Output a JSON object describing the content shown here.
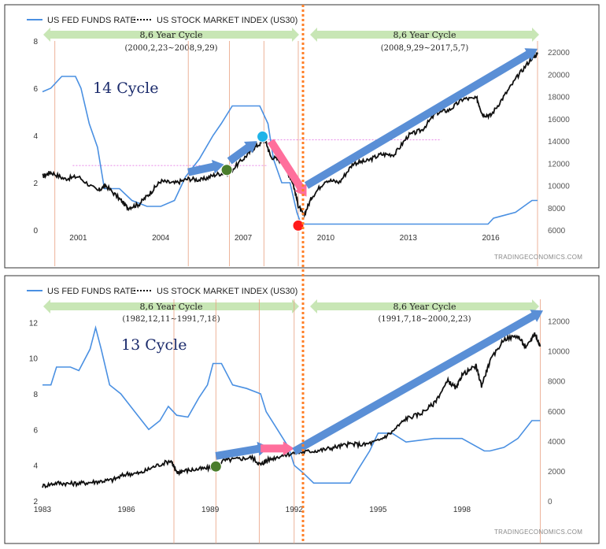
{
  "legend": {
    "fed": "US FED FUNDS RATE",
    "stock": "US STOCK MARKET INDEX (US30)"
  },
  "watermark": "TRADINGECONOMICS.COM",
  "colors": {
    "fed": "#4a90e2",
    "stock": "#111111",
    "arrow_blue": "#5a8fd6",
    "arrow_pink": "#ff6f9c",
    "green_band": "#c8e6b5",
    "cycle_line": "#ff7f27",
    "guide_line": "#e8a080",
    "green_dot": "#4a7d2b",
    "blue_dot": "#1fb3e8",
    "red_dot": "#ff1a1a"
  },
  "chart_data": [
    {
      "type": "line",
      "cycle_label": "14 Cycle",
      "x_ticks": [
        "2001",
        "2004",
        "2007",
        "2010",
        "2013",
        "2016"
      ],
      "y_left_ticks": [
        "0",
        "2",
        "4",
        "6",
        "8"
      ],
      "y_right_ticks": [
        "6000",
        "8000",
        "10000",
        "12000",
        "14000",
        "16000",
        "18000",
        "20000",
        "22000"
      ],
      "ylim_left": [
        0,
        8
      ],
      "ylim_right": [
        6000,
        23000
      ],
      "xlim": [
        1999.7,
        2017.9
      ],
      "cycles": [
        {
          "title": "8,6 Year Cycle",
          "range": "(2000,2,23~2008,9,29)"
        },
        {
          "title": "8,6 Year Cycle",
          "range": "(2008,9,29~2017,5,7)"
        }
      ],
      "series": [
        {
          "name": "US FED FUNDS RATE",
          "axis": "left",
          "x": [
            1999.7,
            2000.0,
            2000.4,
            2000.9,
            2001.1,
            2001.4,
            2001.7,
            2001.95,
            2002.5,
            2002.95,
            2003.5,
            2004.0,
            2004.5,
            2004.9,
            2005.4,
            2005.9,
            2006.2,
            2006.6,
            2007.0,
            2007.6,
            2007.9,
            2008.1,
            2008.4,
            2008.7,
            2008.95,
            2009.1,
            2010.0,
            2012.0,
            2014.0,
            2015.9,
            2016.1,
            2016.9,
            2017.2,
            2017.5,
            2017.7
          ],
          "y": [
            5.85,
            6.0,
            6.5,
            6.5,
            6.0,
            4.5,
            3.5,
            1.75,
            1.75,
            1.25,
            1.0,
            1.0,
            1.25,
            2.25,
            3.0,
            4.0,
            4.5,
            5.25,
            5.25,
            5.25,
            4.5,
            3.0,
            2.0,
            2.0,
            0.75,
            0.25,
            0.25,
            0.25,
            0.25,
            0.25,
            0.5,
            0.75,
            1.0,
            1.25,
            1.25
          ]
        },
        {
          "name": "US STOCK MARKET INDEX (US30)",
          "axis": "right",
          "x": [
            1999.7,
            2000.0,
            2000.5,
            2001.0,
            2001.7,
            2002.0,
            2002.5,
            2002.8,
            2003.2,
            2003.6,
            2004.0,
            2004.5,
            2005.0,
            2005.5,
            2006.0,
            2006.5,
            2007.0,
            2007.4,
            2007.8,
            2008.0,
            2008.4,
            2008.8,
            2009.0,
            2009.2,
            2009.5,
            2010.0,
            2010.5,
            2011.0,
            2011.5,
            2012.0,
            2012.5,
            2013.0,
            2013.5,
            2014.0,
            2014.5,
            2015.0,
            2015.5,
            2015.7,
            2016.0,
            2016.5,
            2017.0,
            2017.5,
            2017.7
          ],
          "y": [
            10800,
            11200,
            10600,
            10800,
            9500,
            10000,
            8800,
            8000,
            8300,
            9300,
            10400,
            10200,
            10600,
            10500,
            11000,
            11200,
            12400,
            13400,
            14100,
            12600,
            12200,
            10300,
            8200,
            7300,
            9000,
            10500,
            10300,
            12000,
            12200,
            12800,
            12800,
            14500,
            15000,
            16500,
            16800,
            17800,
            17800,
            16400,
            16300,
            18100,
            19900,
            21500,
            21800
          ]
        }
      ],
      "annotations": [
        {
          "kind": "arrow",
          "color": "blue",
          "x": [
            2005.0,
            2006.3
          ],
          "y": [
            11200,
            11900
          ]
        },
        {
          "kind": "arrow",
          "color": "blue",
          "x": [
            2006.5,
            2007.5
          ],
          "y": [
            12200,
            14000
          ]
        },
        {
          "kind": "arrow",
          "color": "pink",
          "x": [
            2008.0,
            2009.3
          ],
          "y": [
            14000,
            9000
          ]
        },
        {
          "kind": "arrow",
          "color": "blue",
          "x": [
            2009.3,
            2017.7
          ],
          "y": [
            10000,
            22300
          ]
        },
        {
          "kind": "dot",
          "color": "green",
          "x": 2006.4,
          "y": 11400
        },
        {
          "kind": "dot",
          "color": "blue",
          "x": 2007.7,
          "y": 14400
        },
        {
          "kind": "dot",
          "color": "red",
          "x": 2009.0,
          "y": 6400
        }
      ]
    },
    {
      "type": "line",
      "cycle_label": "13 Cycle",
      "x_ticks": [
        "1983",
        "1986",
        "1989",
        "1992",
        "1995",
        "1998"
      ],
      "y_left_ticks": [
        "2",
        "4",
        "6",
        "8",
        "10",
        "12"
      ],
      "y_right_ticks": [
        "0",
        "2000",
        "4000",
        "6000",
        "8000",
        "10000",
        "12000"
      ],
      "ylim_left": [
        2,
        12.5
      ],
      "ylim_right": [
        0,
        12500
      ],
      "xlim": [
        1983.0,
        2000.9
      ],
      "cycles": [
        {
          "title": "8,6 Year Cycle",
          "range": "(1982,12,11~1991,7,18)"
        },
        {
          "title": "8,6 Year Cycle",
          "range": "(1991,7,18~2000,2,23)"
        }
      ],
      "series": [
        {
          "name": "US FED FUNDS RATE",
          "axis": "left",
          "x": [
            1983.0,
            1983.3,
            1983.5,
            1984.0,
            1984.3,
            1984.7,
            1984.9,
            1985.1,
            1985.4,
            1985.8,
            1986.3,
            1986.8,
            1987.2,
            1987.5,
            1987.8,
            1988.2,
            1988.6,
            1988.9,
            1989.1,
            1989.4,
            1989.8,
            1990.3,
            1990.8,
            1991.0,
            1991.4,
            1991.8,
            1992.0,
            1992.3,
            1992.7,
            1993.0,
            1993.5,
            1994.0,
            1994.3,
            1994.7,
            1995.0,
            1995.5,
            1996.0,
            1997.0,
            1998.0,
            1998.8,
            1999.0,
            1999.5,
            2000.0,
            2000.5,
            2000.8
          ],
          "y": [
            8.5,
            8.5,
            9.5,
            9.5,
            9.3,
            10.5,
            11.7,
            10.5,
            8.5,
            8.0,
            7.0,
            6.0,
            6.5,
            7.3,
            6.8,
            6.7,
            7.8,
            8.5,
            9.7,
            9.7,
            8.5,
            8.3,
            8.0,
            7.0,
            6.0,
            5.0,
            4.0,
            3.6,
            3.0,
            3.0,
            3.0,
            3.0,
            3.8,
            4.8,
            5.8,
            5.8,
            5.3,
            5.5,
            5.5,
            4.8,
            4.8,
            5.0,
            5.5,
            6.5,
            6.5
          ]
        },
        {
          "name": "US STOCK MARKET INDEX (US30)",
          "axis": "right",
          "x": [
            1983.0,
            1983.5,
            1984.0,
            1984.5,
            1985.0,
            1985.5,
            1986.0,
            1986.5,
            1987.0,
            1987.6,
            1987.8,
            1988.0,
            1988.5,
            1989.0,
            1989.5,
            1990.0,
            1990.5,
            1990.8,
            1991.0,
            1991.5,
            1992.0,
            1992.5,
            1993.0,
            1993.5,
            1994.0,
            1994.5,
            1995.0,
            1995.5,
            1996.0,
            1996.5,
            1997.0,
            1997.5,
            1997.8,
            1998.0,
            1998.5,
            1998.7,
            1999.0,
            1999.5,
            2000.0,
            2000.3,
            2000.6,
            2000.8
          ],
          "y": [
            1000,
            1200,
            1150,
            1200,
            1300,
            1400,
            1800,
            1850,
            2300,
            2700,
            1850,
            2000,
            2100,
            2200,
            2700,
            2800,
            2900,
            2400,
            2700,
            3000,
            3200,
            3300,
            3400,
            3600,
            3800,
            3750,
            4000,
            4600,
            5500,
            5800,
            6500,
            8000,
            7500,
            8400,
            9000,
            7700,
            9300,
            10800,
            11000,
            10200,
            11200,
            10300
          ]
        }
      ],
      "annotations": [
        {
          "kind": "arrow",
          "color": "blue",
          "x": [
            1989.2,
            1991.1
          ],
          "y": [
            3000,
            3600
          ]
        },
        {
          "kind": "arrow",
          "color": "pink",
          "x": [
            1990.8,
            1992.0
          ],
          "y": [
            3500,
            3500
          ]
        },
        {
          "kind": "arrow",
          "color": "blue",
          "x": [
            1992.0,
            2000.9
          ],
          "y": [
            3300,
            12700
          ]
        },
        {
          "kind": "dot",
          "color": "green",
          "x": 1989.2,
          "y": 2300
        }
      ]
    }
  ]
}
